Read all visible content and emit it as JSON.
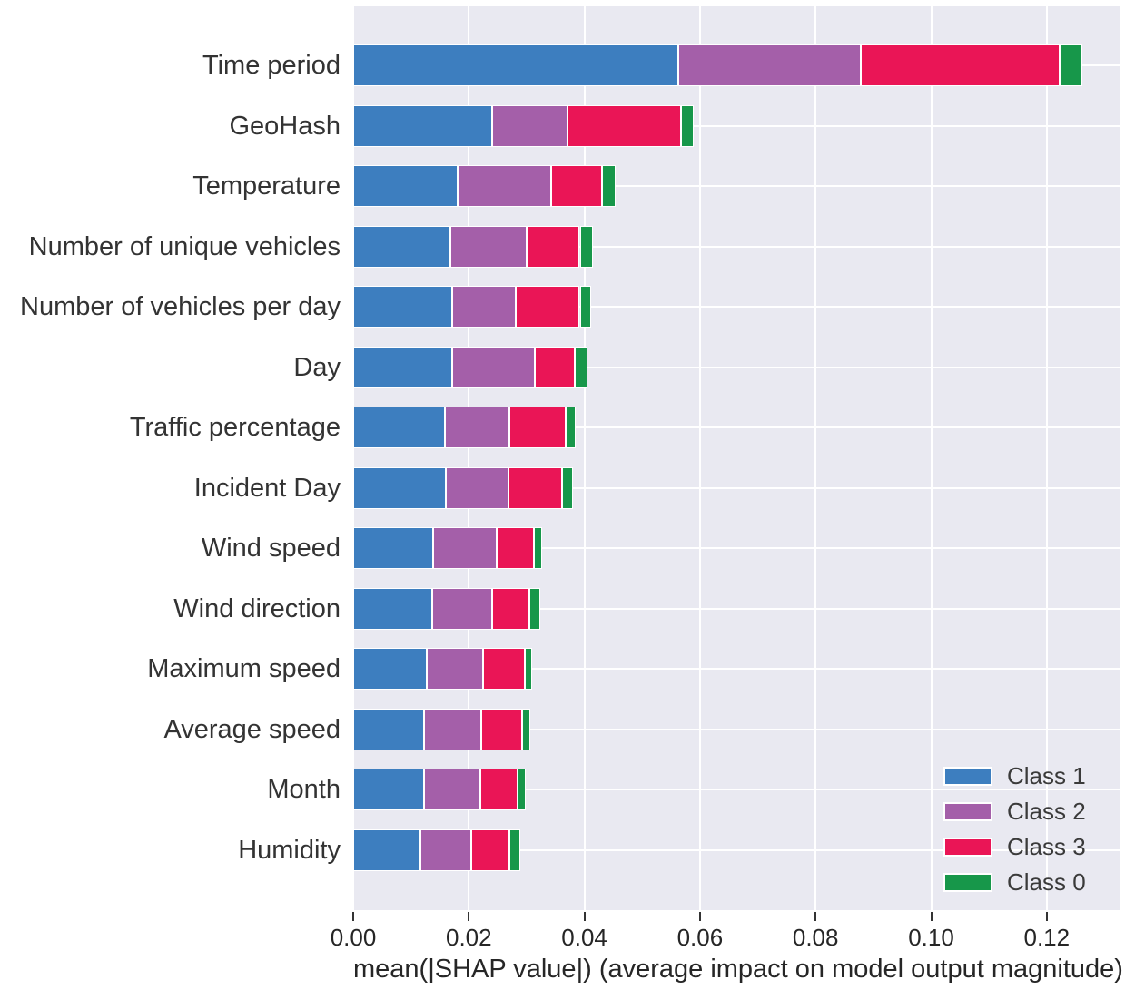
{
  "chart_data": {
    "type": "bar",
    "orientation": "horizontal",
    "stacked": true,
    "title": "",
    "xlabel": "mean(|SHAP value|) (average impact on model output magnitude)",
    "ylabel": "",
    "categories": [
      "Time period",
      "GeoHash",
      "Temperature",
      "Number of unique vehicles",
      "Number of vehicles per day",
      "Day",
      "Traffic percentage",
      "Incident Day",
      "Wind speed",
      "Wind direction",
      "Maximum speed",
      "Average speed",
      "Month",
      "Humidity"
    ],
    "series": [
      {
        "name": "Class 1",
        "color": "#3d7ebf",
        "values": [
          0.0562,
          0.0241,
          0.018,
          0.0168,
          0.0172,
          0.0172,
          0.0159,
          0.0161,
          0.0138,
          0.0137,
          0.0128,
          0.0123,
          0.0123,
          0.0117
        ]
      },
      {
        "name": "Class 2",
        "color": "#a45fa9",
        "values": [
          0.0316,
          0.013,
          0.0162,
          0.0132,
          0.011,
          0.0143,
          0.0112,
          0.0108,
          0.011,
          0.0103,
          0.0096,
          0.0098,
          0.0097,
          0.0088
        ]
      },
      {
        "name": "Class 3",
        "color": "#ea1556",
        "values": [
          0.0344,
          0.0196,
          0.0089,
          0.0092,
          0.011,
          0.0069,
          0.0096,
          0.0093,
          0.0064,
          0.0065,
          0.0073,
          0.0071,
          0.0064,
          0.0066
        ]
      },
      {
        "name": "Class 0",
        "color": "#17974a",
        "values": [
          0.0039,
          0.0022,
          0.0023,
          0.0022,
          0.0019,
          0.0021,
          0.0018,
          0.0019,
          0.0015,
          0.0019,
          0.0013,
          0.0014,
          0.0015,
          0.0018
        ]
      }
    ],
    "x_ticks": [
      "0.00",
      "0.02",
      "0.04",
      "0.06",
      "0.08",
      "0.10",
      "0.12"
    ],
    "x_tick_values": [
      0.0,
      0.02,
      0.04,
      0.06,
      0.08,
      0.1,
      0.12
    ],
    "xlim": [
      0,
      0.1326
    ],
    "grid": true,
    "legend_position": "lower right",
    "plot_bg_color": "#e9e9f1",
    "grid_color": "#ffffff",
    "text_color": "#333333"
  }
}
